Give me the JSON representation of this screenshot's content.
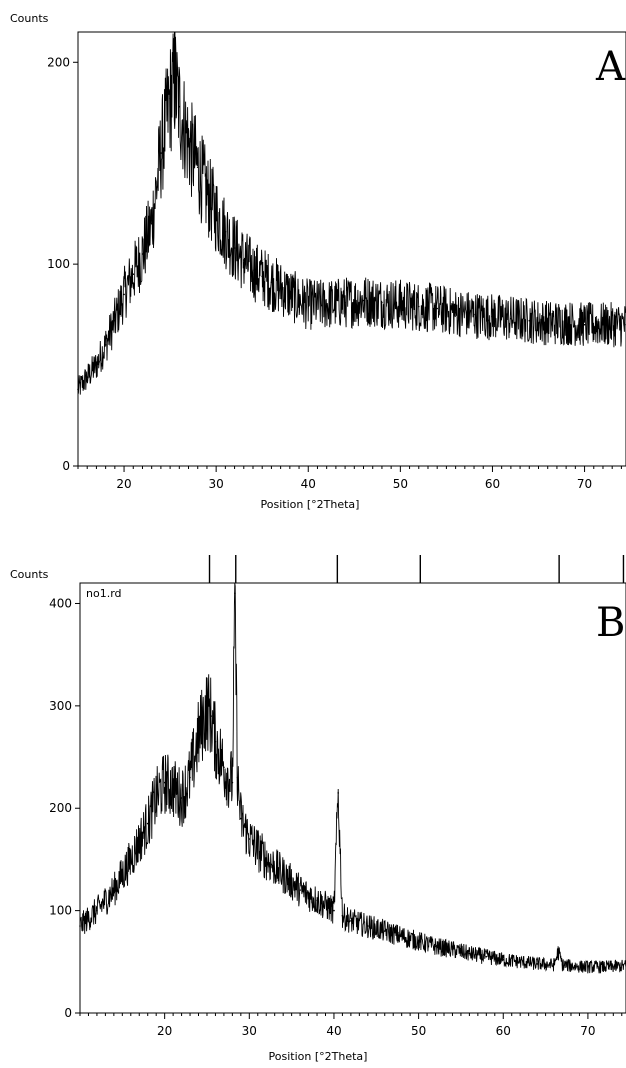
{
  "chart_data": [
    {
      "type": "line",
      "panel_label": "A",
      "ylabel": "Counts",
      "xlabel": "Position [°2Theta]",
      "xlim": [
        15,
        74.5
      ],
      "ylim": [
        0,
        215
      ],
      "xticks": [
        20,
        30,
        40,
        50,
        60,
        70
      ],
      "xtick_labels": [
        "20",
        "30",
        "40",
        "50",
        "60",
        "70"
      ],
      "yticks": [
        0,
        100,
        200
      ],
      "ytick_labels": [
        "0",
        "100",
        "200"
      ],
      "grid": false,
      "series": [
        {
          "x": [
            15,
            16,
            17,
            18,
            19,
            20,
            21,
            22,
            23,
            24,
            25,
            25.5,
            26,
            27,
            28,
            29,
            30,
            31,
            32,
            33,
            34,
            35,
            36,
            37,
            38,
            39,
            40,
            42,
            44,
            46,
            48,
            50,
            52,
            54,
            56,
            58,
            60,
            62,
            64,
            66,
            68,
            70,
            72,
            74.5
          ],
          "y": [
            38,
            44,
            50,
            60,
            72,
            85,
            95,
            105,
            120,
            155,
            182,
            190,
            178,
            160,
            148,
            135,
            125,
            116,
            108,
            102,
            97,
            94,
            91,
            88,
            85,
            82,
            80,
            80,
            81,
            82,
            81,
            80,
            79,
            78,
            76,
            75,
            74,
            73,
            72,
            71,
            71,
            70,
            70,
            70
          ]
        }
      ],
      "peak_markers": [
        25.5
      ]
    },
    {
      "type": "line",
      "panel_label": "B",
      "ylabel": "Counts",
      "xlabel": "Position [°2Theta]",
      "file_label": "no1.rd",
      "xlim": [
        10,
        74.5
      ],
      "ylim": [
        0,
        420
      ],
      "xticks": [
        20,
        30,
        40,
        50,
        60,
        70
      ],
      "xtick_labels": [
        "20",
        "30",
        "40",
        "50",
        "60",
        "70"
      ],
      "yticks": [
        0,
        100,
        200,
        300,
        400
      ],
      "ytick_labels": [
        "0",
        "100",
        "200",
        "300",
        "400"
      ],
      "grid": false,
      "series": [
        {
          "x": [
            10,
            12,
            14,
            16,
            18,
            19,
            20,
            21,
            22,
            23,
            24,
            25,
            25.5,
            26,
            27,
            28,
            28.3,
            28.6,
            29,
            30,
            32,
            34,
            36,
            38,
            40,
            40.5,
            41,
            42,
            44,
            46,
            48,
            50,
            52,
            54,
            56,
            58,
            60,
            62,
            64,
            66,
            66.5,
            67,
            68,
            70,
            72,
            74.5
          ],
          "y": [
            85,
            100,
            120,
            150,
            185,
            210,
            225,
            220,
            210,
            230,
            270,
            298,
            290,
            265,
            240,
            225,
            410,
            230,
            190,
            170,
            150,
            135,
            120,
            110,
            100,
            215,
            95,
            90,
            85,
            80,
            75,
            70,
            65,
            62,
            58,
            55,
            52,
            50,
            48,
            47,
            60,
            47,
            46,
            45,
            45,
            46
          ]
        }
      ],
      "reference_markers": [
        25.3,
        28.4,
        40.4,
        50.2,
        66.6,
        74.2
      ]
    }
  ]
}
